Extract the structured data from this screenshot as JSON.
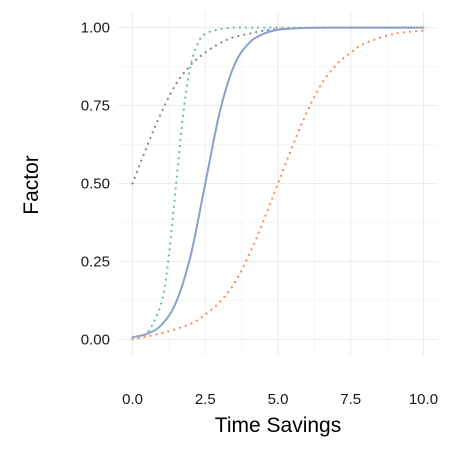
{
  "chart_data": {
    "type": "line",
    "title": "",
    "xlabel": "Time Savings",
    "ylabel": "Factor",
    "xlim": [
      -0.5,
      10.5
    ],
    "ylim": [
      -0.05,
      1.05
    ],
    "x_ticks": [
      0,
      2.5,
      5,
      7.5,
      10
    ],
    "x_tick_labels": [
      "0.0",
      "2.5",
      "5.0",
      "7.5",
      "10.0"
    ],
    "y_ticks": [
      0,
      0.25,
      0.5,
      0.75,
      1
    ],
    "y_tick_labels": [
      "0.00",
      "0.25",
      "0.50",
      "0.75",
      "1.00"
    ],
    "grid": true,
    "legend": "none",
    "series": [
      {
        "color": "#8c8c8c",
        "style": "dotted",
        "x": [
          0,
          0.5,
          1,
          1.5,
          2,
          2.5,
          3,
          3.5,
          4,
          4.5,
          5,
          6,
          7,
          8,
          9,
          10
        ],
        "y": [
          0.5,
          0.62,
          0.73,
          0.82,
          0.88,
          0.92,
          0.95,
          0.97,
          0.98,
          0.99,
          0.995,
          0.999,
          1.0,
          1.0,
          1.0,
          1.0
        ]
      },
      {
        "color": "#66c2a5",
        "style": "dotted",
        "x": [
          0,
          0.5,
          1,
          1.25,
          1.5,
          1.75,
          2,
          2.25,
          2.5,
          3,
          3.5,
          4,
          5,
          6,
          8,
          10
        ],
        "y": [
          0.005,
          0.02,
          0.12,
          0.27,
          0.5,
          0.73,
          0.88,
          0.95,
          0.98,
          0.995,
          1.0,
          1.0,
          1.0,
          1.0,
          1.0,
          1.0
        ]
      },
      {
        "color": "#8da0cb",
        "style": "solid",
        "x": [
          0,
          0.5,
          1,
          1.5,
          2,
          2.5,
          3,
          3.5,
          4,
          4.5,
          5,
          5.5,
          6,
          7,
          8,
          9,
          10
        ],
        "y": [
          0.007,
          0.018,
          0.047,
          0.12,
          0.27,
          0.5,
          0.73,
          0.88,
          0.95,
          0.98,
          0.993,
          0.997,
          0.999,
          1.0,
          1.0,
          1.0,
          1.0
        ]
      },
      {
        "color": "#fc8d62",
        "style": "dotted",
        "x": [
          0,
          1,
          2,
          2.5,
          3,
          3.5,
          4,
          4.5,
          5,
          5.5,
          6,
          6.5,
          7,
          7.5,
          8,
          9,
          10
        ],
        "y": [
          0.0,
          0.02,
          0.05,
          0.08,
          0.12,
          0.18,
          0.27,
          0.38,
          0.5,
          0.62,
          0.73,
          0.82,
          0.88,
          0.92,
          0.95,
          0.98,
          0.99
        ]
      }
    ]
  }
}
